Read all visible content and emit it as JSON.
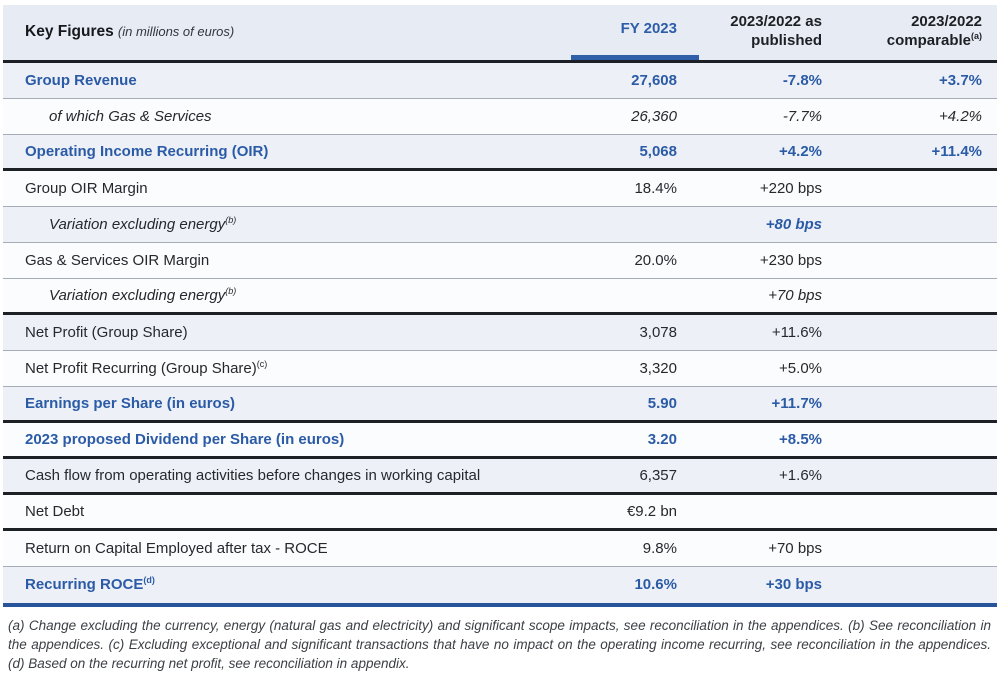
{
  "header": {
    "key_figures": "Key Figures",
    "unit_note": "(in millions of euros)",
    "col_fy": "FY 2023",
    "col_published": "2023/2022 as published",
    "col_comparable": "2023/2022 comparable",
    "col_comparable_sup": "(a)"
  },
  "colors": {
    "accent_blue": "#2b5ba6",
    "dark_text": "#26282d",
    "light_row_bg": "#edf1f7",
    "header_bg": "#e7ecf4",
    "thick_rule": "#1d2025",
    "thin_rule": "#a6adb8",
    "bottom_rule_navy": "#27549a"
  },
  "table": {
    "rows": [
      {
        "label": "Group Revenue",
        "sup": "",
        "indent": false,
        "label_style": "blue",
        "value_style": "blue",
        "fy": "27,608",
        "pub": "-7.8%",
        "comp": "+3.7%",
        "bg": "light",
        "border": "thin"
      },
      {
        "label": "of which Gas & Services",
        "sup": "",
        "indent": true,
        "label_style": "italic",
        "value_style": "italic",
        "fy": "26,360",
        "pub": "-7.7%",
        "comp": "+4.2%",
        "bg": "white",
        "border": "thin"
      },
      {
        "label": "Operating Income Recurring (OIR)",
        "sup": "",
        "indent": false,
        "label_style": "blue",
        "value_style": "blue",
        "fy": "5,068",
        "pub": "+4.2%",
        "comp": "+11.4%",
        "bg": "light",
        "border": "thick"
      },
      {
        "label": "Group OIR Margin",
        "sup": "",
        "indent": false,
        "label_style": "dark",
        "value_style": "dark",
        "fy": "18.4%",
        "pub": "+220 bps",
        "comp": "",
        "bg": "white",
        "border": "thin"
      },
      {
        "label": "Variation excluding energy",
        "sup": "(b)",
        "indent": true,
        "label_style": "italic",
        "value_style": "blue-italic",
        "fy": "",
        "pub": "+80 bps",
        "comp": "",
        "bg": "light",
        "border": "thin"
      },
      {
        "label": "Gas & Services OIR Margin",
        "sup": "",
        "indent": false,
        "label_style": "dark",
        "value_style": "dark",
        "fy": "20.0%",
        "pub": "+230 bps",
        "comp": "",
        "bg": "white",
        "border": "thin"
      },
      {
        "label": "Variation excluding energy",
        "sup": "(b)",
        "indent": true,
        "label_style": "italic",
        "value_style": "italic",
        "fy": "",
        "pub": "+70 bps",
        "comp": "",
        "bg": "white",
        "border": "thick"
      },
      {
        "label": "Net Profit (Group Share)",
        "sup": "",
        "indent": false,
        "label_style": "dark",
        "value_style": "dark",
        "fy": "3,078",
        "pub": "+11.6%",
        "comp": "",
        "bg": "light",
        "border": "thin"
      },
      {
        "label": "Net Profit Recurring (Group Share)",
        "sup": "(c)",
        "indent": false,
        "label_style": "dark",
        "value_style": "dark",
        "fy": "3,320",
        "pub": "+5.0%",
        "comp": "",
        "bg": "white",
        "border": "thin"
      },
      {
        "label": "Earnings per Share (in euros)",
        "sup": "",
        "indent": false,
        "label_style": "blue",
        "value_style": "blue",
        "fy": "5.90",
        "pub": "+11.7%",
        "comp": "",
        "bg": "light",
        "border": "thick"
      },
      {
        "label": "2023 proposed Dividend per Share (in euros)",
        "sup": "",
        "indent": false,
        "label_style": "blue",
        "value_style": "blue",
        "fy": "3.20",
        "pub": "+8.5%",
        "comp": "",
        "bg": "white",
        "border": "thick"
      },
      {
        "label": "Cash flow from operating activities before changes in working capital",
        "sup": "",
        "indent": false,
        "label_style": "dark",
        "value_style": "dark",
        "fy": "6,357",
        "pub": "+1.6%",
        "comp": "",
        "bg": "light",
        "border": "thick"
      },
      {
        "label": "Net Debt",
        "sup": "",
        "indent": false,
        "label_style": "dark",
        "value_style": "dark",
        "fy": "€9.2 bn",
        "pub": "",
        "comp": "",
        "bg": "white",
        "border": "thick"
      },
      {
        "label": "Return on Capital Employed after tax - ROCE",
        "sup": "",
        "indent": false,
        "label_style": "dark",
        "value_style": "dark",
        "fy": "9.8%",
        "pub": "+70 bps",
        "comp": "",
        "bg": "white",
        "border": "thin"
      },
      {
        "label": "Recurring ROCE",
        "sup": "(d)",
        "indent": false,
        "label_style": "blue",
        "value_style": "blue",
        "fy": "10.6%",
        "pub": "+30 bps",
        "comp": "",
        "bg": "light",
        "border": "none"
      }
    ]
  },
  "footnotes": "(a) Change excluding the currency, energy (natural gas and electricity) and significant scope impacts, see reconciliation in the appendices. (b) See reconciliation in the appendices. (c) Excluding exceptional and significant transactions that have no impact on the operating income recurring, see reconciliation in the appendices. (d) Based on the recurring net profit, see reconciliation in appendix."
}
